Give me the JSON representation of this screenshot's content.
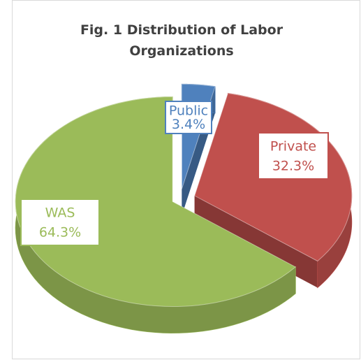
{
  "chart_data": {
    "type": "pie",
    "title": "Fig. 1 Distribution of Labor Organizations",
    "categories": [
      "Public",
      "Private",
      "WAS"
    ],
    "values": [
      3.4,
      32.3,
      64.3
    ],
    "value_labels": [
      "3.4%",
      "32.3%",
      "64.3%"
    ],
    "colors": [
      "#4f81bd",
      "#c0504d",
      "#9bbb59"
    ],
    "three_d": true,
    "explode": true
  }
}
